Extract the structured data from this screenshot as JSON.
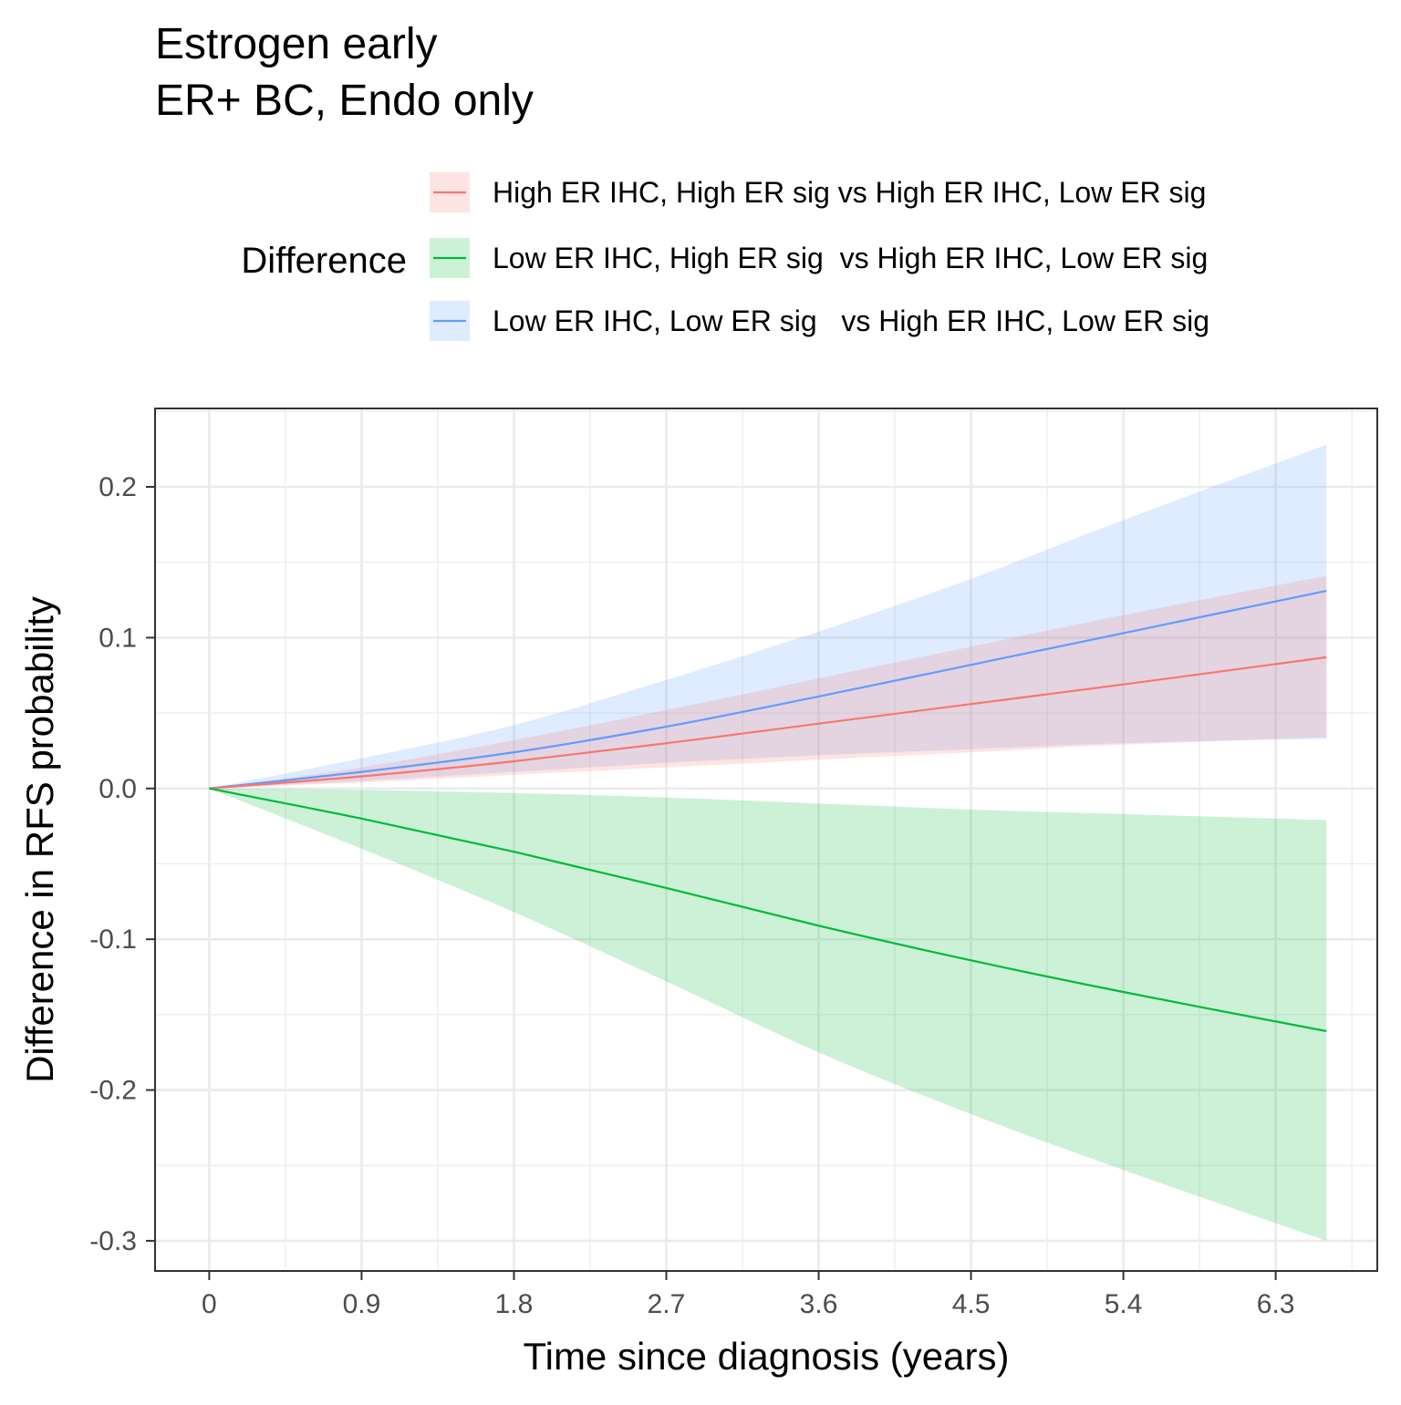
{
  "chart_data": {
    "type": "line",
    "title_lines": [
      "Estrogen early",
      "ER+ BC, Endo only"
    ],
    "xlabel": "Time since diagnosis (years)",
    "ylabel": "Difference in RFS probability",
    "xlim": [
      -0.32,
      6.9
    ],
    "ylim": [
      -0.32,
      0.252
    ],
    "x_ticks": [
      0,
      0.9,
      1.8,
      2.7,
      3.6,
      4.5,
      5.4,
      6.3
    ],
    "x_tick_labels": [
      "0",
      "0.9",
      "1.8",
      "2.7",
      "3.6",
      "4.5",
      "5.4",
      "6.3"
    ],
    "y_ticks": [
      -0.3,
      -0.2,
      -0.1,
      0.0,
      0.1,
      0.2
    ],
    "y_tick_labels": [
      "-0.3",
      "-0.2",
      "-0.1",
      "0.0",
      "0.1",
      "0.2"
    ],
    "grid": true,
    "legend": {
      "title": "Difference",
      "position": "top-right"
    },
    "series": [
      {
        "name": "Low ER IHC, Low ER sig   vs High ER IHC, Low ER sig",
        "color": "#619CFF",
        "x": [
          0,
          0.9,
          1.8,
          2.7,
          3.6,
          4.5,
          5.4,
          6.6
        ],
        "values": [
          0,
          0.011,
          0.024,
          0.041,
          0.061,
          0.082,
          0.103,
          0.131
        ],
        "lower": [
          0,
          0.005,
          0.011,
          0.017,
          0.022,
          0.026,
          0.03,
          0.033
        ],
        "upper": [
          0,
          0.02,
          0.042,
          0.072,
          0.104,
          0.139,
          0.178,
          0.228
        ]
      },
      {
        "name": "High ER IHC, High ER sig vs High ER IHC, Low ER sig",
        "color": "#F8766D",
        "x": [
          0,
          0.9,
          1.8,
          2.7,
          3.6,
          4.5,
          5.4,
          6.6
        ],
        "values": [
          0,
          0.008,
          0.018,
          0.03,
          0.043,
          0.056,
          0.069,
          0.087
        ],
        "lower": [
          0,
          0.004,
          0.009,
          0.014,
          0.019,
          0.024,
          0.029,
          0.034
        ],
        "upper": [
          0,
          0.014,
          0.032,
          0.052,
          0.073,
          0.094,
          0.115,
          0.141
        ]
      },
      {
        "name": "Low ER IHC, High ER sig  vs High ER IHC, Low ER sig",
        "color": "#00BA38",
        "x": [
          0,
          0.9,
          1.8,
          2.7,
          3.6,
          4.5,
          5.4,
          6.6
        ],
        "values": [
          0,
          -0.02,
          -0.042,
          -0.066,
          -0.091,
          -0.114,
          -0.135,
          -0.161
        ],
        "lower": [
          0,
          -0.04,
          -0.082,
          -0.128,
          -0.175,
          -0.216,
          -0.253,
          -0.3
        ],
        "upper": [
          0,
          -0.001,
          -0.003,
          -0.006,
          -0.01,
          -0.014,
          -0.017,
          -0.021
        ]
      }
    ],
    "legend_order": [
      1,
      2,
      0
    ]
  }
}
